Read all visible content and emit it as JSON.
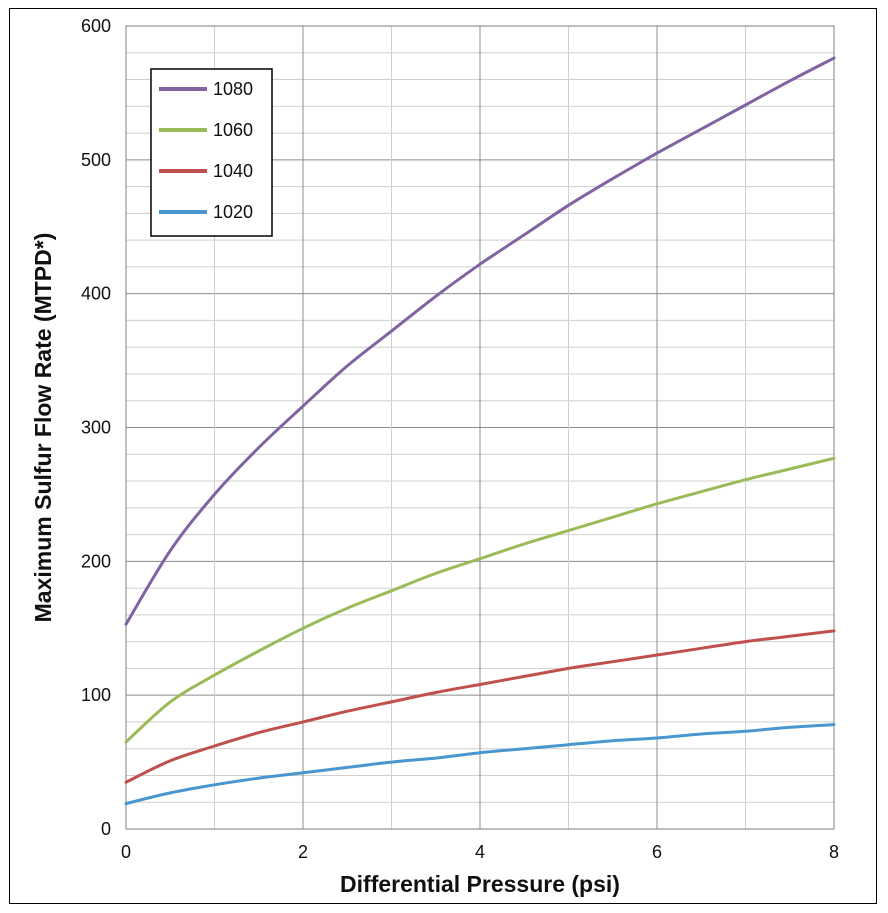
{
  "chart_data": {
    "type": "line",
    "title": "",
    "xlabel": "Differential Pressure (psi)",
    "ylabel": "Maximum Sulfur Flow Rate (MTPD*)",
    "xlim": [
      0,
      8
    ],
    "ylim": [
      0,
      600
    ],
    "x_ticks": [
      "0",
      "2",
      "4",
      "6",
      "8"
    ],
    "y_ticks": [
      "0",
      "100",
      "200",
      "300",
      "400",
      "500",
      "600"
    ],
    "grid": true,
    "legend_position": "top-left",
    "x": [
      0,
      0.5,
      1,
      1.5,
      2,
      2.5,
      3,
      3.5,
      4,
      4.5,
      5,
      5.5,
      6,
      6.5,
      7,
      7.5,
      8
    ],
    "series": [
      {
        "name": "1080",
        "color": "#8064a2",
        "values": [
          153,
          208,
          250,
          285,
          316,
          346,
          372,
          398,
          422,
          444,
          466,
          486,
          505,
          523,
          541,
          559,
          576
        ]
      },
      {
        "name": "1060",
        "color": "#9bbb59",
        "values": [
          65,
          95,
          115,
          133,
          150,
          165,
          178,
          191,
          202,
          213,
          223,
          233,
          243,
          252,
          261,
          269,
          277
        ]
      },
      {
        "name": "1040",
        "color": "#c0504d",
        "values": [
          35,
          51,
          62,
          72,
          80,
          88,
          95,
          102,
          108,
          114,
          120,
          125,
          130,
          135,
          140,
          144,
          148
        ]
      },
      {
        "name": "1020",
        "color": "#4a96cf",
        "values": [
          19,
          27,
          33,
          38,
          42,
          46,
          50,
          53,
          57,
          60,
          63,
          66,
          68,
          71,
          73,
          76,
          78
        ]
      }
    ]
  }
}
